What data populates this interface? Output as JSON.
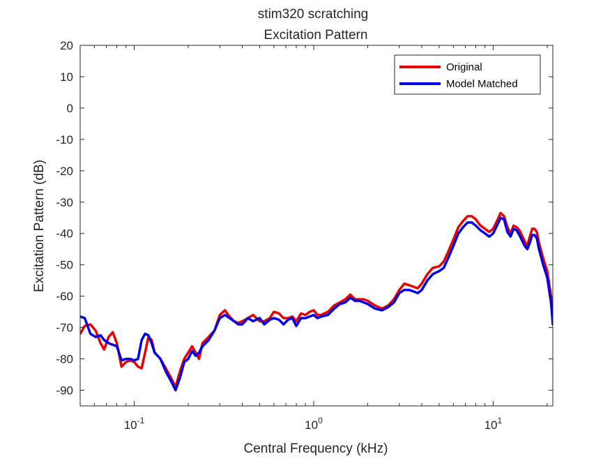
{
  "chart_data": {
    "type": "line",
    "title": "stim320 scratching",
    "subtitle": "Excitation Pattern",
    "xlabel": "Central Frequency (kHz)",
    "ylabel": "Excitation Pattern (dB)",
    "x_scale": "log",
    "xlim": [
      0.05,
      21.5
    ],
    "ylim": [
      -95,
      20
    ],
    "y_ticks": [
      20,
      10,
      0,
      -10,
      -20,
      -30,
      -40,
      -50,
      -60,
      -70,
      -80,
      -90
    ],
    "x_ticks": [
      {
        "value": 0.1,
        "base": "10",
        "exponent": "-1"
      },
      {
        "value": 1,
        "base": "10",
        "exponent": "0"
      },
      {
        "value": 10,
        "base": "10",
        "exponent": "1"
      }
    ],
    "grid": false,
    "legend": {
      "position": "top-right"
    },
    "series": [
      {
        "name": "Original",
        "color": "#e60000",
        "points": [
          [
            0.05,
            -72
          ],
          [
            0.053,
            -69.5
          ],
          [
            0.057,
            -69
          ],
          [
            0.061,
            -71
          ],
          [
            0.065,
            -75
          ],
          [
            0.068,
            -77
          ],
          [
            0.072,
            -73
          ],
          [
            0.076,
            -71.5
          ],
          [
            0.08,
            -75
          ],
          [
            0.085,
            -82.5
          ],
          [
            0.09,
            -81
          ],
          [
            0.095,
            -80.5
          ],
          [
            0.1,
            -81
          ],
          [
            0.105,
            -82.5
          ],
          [
            0.11,
            -83
          ],
          [
            0.115,
            -78
          ],
          [
            0.12,
            -73
          ],
          [
            0.125,
            -74
          ],
          [
            0.13,
            -78
          ],
          [
            0.14,
            -80
          ],
          [
            0.15,
            -83
          ],
          [
            0.16,
            -86
          ],
          [
            0.17,
            -89
          ],
          [
            0.18,
            -84
          ],
          [
            0.19,
            -80
          ],
          [
            0.2,
            -78
          ],
          [
            0.21,
            -76
          ],
          [
            0.22,
            -78
          ],
          [
            0.23,
            -80
          ],
          [
            0.24,
            -75
          ],
          [
            0.26,
            -73
          ],
          [
            0.28,
            -71
          ],
          [
            0.3,
            -66
          ],
          [
            0.32,
            -64.5
          ],
          [
            0.34,
            -66.5
          ],
          [
            0.36,
            -68
          ],
          [
            0.38,
            -68.5
          ],
          [
            0.4,
            -68
          ],
          [
            0.43,
            -67
          ],
          [
            0.46,
            -66
          ],
          [
            0.5,
            -68
          ],
          [
            0.53,
            -68
          ],
          [
            0.57,
            -67
          ],
          [
            0.6,
            -65
          ],
          [
            0.64,
            -65.5
          ],
          [
            0.68,
            -67
          ],
          [
            0.72,
            -67
          ],
          [
            0.76,
            -66.5
          ],
          [
            0.8,
            -68
          ],
          [
            0.85,
            -65.5
          ],
          [
            0.9,
            -66
          ],
          [
            0.95,
            -65
          ],
          [
            1.0,
            -64.5
          ],
          [
            1.05,
            -66
          ],
          [
            1.1,
            -66
          ],
          [
            1.2,
            -65
          ],
          [
            1.3,
            -63
          ],
          [
            1.4,
            -62
          ],
          [
            1.5,
            -61
          ],
          [
            1.6,
            -59.5
          ],
          [
            1.7,
            -61
          ],
          [
            1.8,
            -61
          ],
          [
            1.9,
            -61
          ],
          [
            2.0,
            -61.5
          ],
          [
            2.2,
            -63
          ],
          [
            2.4,
            -64
          ],
          [
            2.6,
            -63
          ],
          [
            2.8,
            -61
          ],
          [
            3.0,
            -58
          ],
          [
            3.2,
            -56
          ],
          [
            3.4,
            -56.5
          ],
          [
            3.6,
            -57
          ],
          [
            3.8,
            -57.5
          ],
          [
            4.0,
            -56
          ],
          [
            4.3,
            -53
          ],
          [
            4.6,
            -51
          ],
          [
            5.0,
            -50.5
          ],
          [
            5.3,
            -49
          ],
          [
            5.6,
            -46
          ],
          [
            6.0,
            -42
          ],
          [
            6.4,
            -38
          ],
          [
            6.8,
            -36
          ],
          [
            7.2,
            -34.5
          ],
          [
            7.6,
            -34.5
          ],
          [
            8.0,
            -35.5
          ],
          [
            8.5,
            -37.5
          ],
          [
            9.0,
            -38.5
          ],
          [
            9.5,
            -39.5
          ],
          [
            10.0,
            -38.5
          ],
          [
            10.5,
            -36
          ],
          [
            11.0,
            -33.5
          ],
          [
            11.5,
            -34.5
          ],
          [
            12.0,
            -38
          ],
          [
            12.5,
            -40
          ],
          [
            13.0,
            -37.5
          ],
          [
            13.5,
            -38
          ],
          [
            14.0,
            -39
          ],
          [
            15.0,
            -42.5
          ],
          [
            15.5,
            -44
          ],
          [
            16.0,
            -41
          ],
          [
            16.5,
            -38.5
          ],
          [
            17.0,
            -38.5
          ],
          [
            17.5,
            -39.5
          ],
          [
            18.0,
            -43
          ],
          [
            19.0,
            -48
          ],
          [
            20.0,
            -52
          ],
          [
            21.0,
            -60
          ],
          [
            21.5,
            -68
          ]
        ]
      },
      {
        "name": "Model Matched",
        "color": "#0000e6",
        "points": [
          [
            0.05,
            -66.5
          ],
          [
            0.053,
            -67
          ],
          [
            0.057,
            -72
          ],
          [
            0.061,
            -73
          ],
          [
            0.065,
            -72.5
          ],
          [
            0.068,
            -74
          ],
          [
            0.072,
            -75
          ],
          [
            0.076,
            -75.5
          ],
          [
            0.08,
            -76
          ],
          [
            0.085,
            -80.5
          ],
          [
            0.09,
            -80
          ],
          [
            0.095,
            -80
          ],
          [
            0.1,
            -80.5
          ],
          [
            0.105,
            -80
          ],
          [
            0.11,
            -74
          ],
          [
            0.115,
            -72
          ],
          [
            0.12,
            -72.5
          ],
          [
            0.125,
            -75
          ],
          [
            0.13,
            -78
          ],
          [
            0.14,
            -80
          ],
          [
            0.15,
            -84
          ],
          [
            0.16,
            -87
          ],
          [
            0.17,
            -90
          ],
          [
            0.18,
            -86
          ],
          [
            0.19,
            -81
          ],
          [
            0.2,
            -80
          ],
          [
            0.21,
            -77.5
          ],
          [
            0.22,
            -79
          ],
          [
            0.23,
            -78
          ],
          [
            0.24,
            -76
          ],
          [
            0.26,
            -74
          ],
          [
            0.28,
            -71
          ],
          [
            0.3,
            -67
          ],
          [
            0.32,
            -66
          ],
          [
            0.34,
            -67
          ],
          [
            0.36,
            -68
          ],
          [
            0.38,
            -69
          ],
          [
            0.4,
            -69
          ],
          [
            0.43,
            -67
          ],
          [
            0.46,
            -68
          ],
          [
            0.5,
            -67
          ],
          [
            0.53,
            -69
          ],
          [
            0.57,
            -67.5
          ],
          [
            0.6,
            -67
          ],
          [
            0.64,
            -67.5
          ],
          [
            0.68,
            -69
          ],
          [
            0.72,
            -67.5
          ],
          [
            0.76,
            -67
          ],
          [
            0.8,
            -69.5
          ],
          [
            0.85,
            -67
          ],
          [
            0.9,
            -67
          ],
          [
            0.95,
            -66.5
          ],
          [
            1.0,
            -66
          ],
          [
            1.05,
            -67
          ],
          [
            1.1,
            -66.5
          ],
          [
            1.2,
            -66
          ],
          [
            1.3,
            -64
          ],
          [
            1.4,
            -62.5
          ],
          [
            1.5,
            -62
          ],
          [
            1.6,
            -60.5
          ],
          [
            1.7,
            -61.5
          ],
          [
            1.8,
            -61.5
          ],
          [
            1.9,
            -62
          ],
          [
            2.0,
            -62.5
          ],
          [
            2.2,
            -64
          ],
          [
            2.4,
            -64.5
          ],
          [
            2.6,
            -63.5
          ],
          [
            2.8,
            -62
          ],
          [
            3.0,
            -59
          ],
          [
            3.2,
            -58
          ],
          [
            3.4,
            -58
          ],
          [
            3.6,
            -58.5
          ],
          [
            3.8,
            -59
          ],
          [
            4.0,
            -58
          ],
          [
            4.3,
            -55
          ],
          [
            4.6,
            -53
          ],
          [
            5.0,
            -52
          ],
          [
            5.3,
            -51
          ],
          [
            5.6,
            -48
          ],
          [
            6.0,
            -44
          ],
          [
            6.4,
            -40
          ],
          [
            6.8,
            -38
          ],
          [
            7.2,
            -36.5
          ],
          [
            7.6,
            -36.5
          ],
          [
            8.0,
            -37.5
          ],
          [
            8.5,
            -39
          ],
          [
            9.0,
            -40
          ],
          [
            9.5,
            -41
          ],
          [
            10.0,
            -40
          ],
          [
            10.5,
            -37.5
          ],
          [
            11.0,
            -35
          ],
          [
            11.5,
            -35.5
          ],
          [
            12.0,
            -39.5
          ],
          [
            12.5,
            -41
          ],
          [
            13.0,
            -38.5
          ],
          [
            13.5,
            -39
          ],
          [
            14.0,
            -40.5
          ],
          [
            15.0,
            -44
          ],
          [
            15.5,
            -45
          ],
          [
            16.0,
            -43
          ],
          [
            16.5,
            -40.5
          ],
          [
            17.0,
            -40.5
          ],
          [
            17.5,
            -41.5
          ],
          [
            18.0,
            -45
          ],
          [
            19.0,
            -50
          ],
          [
            20.0,
            -54
          ],
          [
            21.0,
            -62
          ],
          [
            21.5,
            -69
          ]
        ]
      }
    ]
  }
}
